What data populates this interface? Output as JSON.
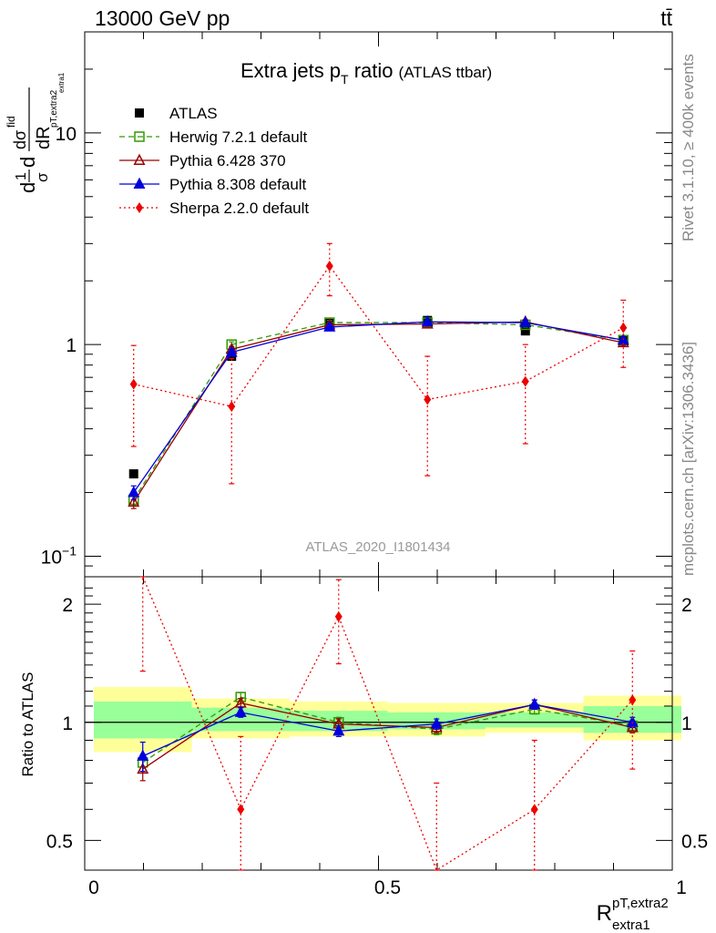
{
  "header": {
    "energy_label": "13000 GeV pp",
    "process_label": "tt̄"
  },
  "side_labels": {
    "rivet": "Rivet 3.1.10, ≥ 400k events",
    "mcplots": "mcplots.cern.ch [arXiv:1306.3436]"
  },
  "chart_data": [
    {
      "type": "line",
      "title": "Extra jets p_T ratio",
      "title_main": "Extra jets p",
      "title_sub": "T",
      "title_rest": " ratio",
      "title_note": "(ATLAS ttbar)",
      "analysis_label": "ATLAS_2020_I1801434",
      "ylabel_parts": [
        "d",
        "1",
        "σ",
        "d",
        "dσ",
        "fid",
        "dR",
        "pT,extra2",
        "extra1"
      ],
      "xlim": [
        0,
        1
      ],
      "ylim": [
        0.08,
        30
      ],
      "yscale": "log",
      "yticks": [
        {
          "v": 0.1,
          "base": "10",
          "exp": "−1"
        },
        {
          "v": 1,
          "base": "1",
          "exp": ""
        },
        {
          "v": 10,
          "base": "10",
          "exp": ""
        }
      ],
      "x": [
        0.0833,
        0.25,
        0.4167,
        0.5833,
        0.75,
        0.9167
      ],
      "legend_placement": "top-left",
      "series": [
        {
          "name": "ATLAS",
          "color": "#000000",
          "marker": "square-filled",
          "dash": "none",
          "values": [
            0.245,
            0.88,
            1.26,
            1.3,
            1.16,
            1.05
          ]
        },
        {
          "name": "Herwig 7.2.1 default",
          "color": "#339900",
          "marker": "square-open",
          "dash": "dashed",
          "values": [
            0.185,
            1.0,
            1.27,
            1.27,
            1.24,
            1.05
          ],
          "err": [
            0.01,
            0.03,
            0.03,
            0.03,
            0.03,
            0.03
          ]
        },
        {
          "name": "Pythia 6.428 370",
          "color": "#990000",
          "marker": "triangle-open",
          "dash": "solid",
          "values": [
            0.18,
            0.95,
            1.24,
            1.25,
            1.28,
            1.02
          ],
          "err": [
            0.012,
            0.03,
            0.03,
            0.03,
            0.03,
            0.03
          ]
        },
        {
          "name": "Pythia 8.308 default",
          "color": "#0000dd",
          "marker": "triangle-filled",
          "dash": "solid",
          "values": [
            0.2,
            0.92,
            1.21,
            1.28,
            1.27,
            1.05
          ],
          "err": [
            0.015,
            0.03,
            0.03,
            0.03,
            0.03,
            0.03
          ]
        },
        {
          "name": "Sherpa 2.2.0 default",
          "color": "#ee0000",
          "marker": "diamond-filled",
          "dash": "dotted",
          "values": [
            0.65,
            0.51,
            2.35,
            0.55,
            0.67,
            1.2
          ],
          "err_lo": [
            0.32,
            0.29,
            0.65,
            0.31,
            0.33,
            0.42
          ],
          "err_hi": [
            0.34,
            0.35,
            0.65,
            0.33,
            0.33,
            0.42
          ]
        }
      ]
    },
    {
      "type": "line",
      "ylabel": "Ratio to ATLAS",
      "xlabel": "R",
      "xlabel_sup": "pT,extra2",
      "xlabel_sub": "extra1",
      "xlim": [
        0,
        1
      ],
      "ylim": [
        0.42,
        2.35
      ],
      "yscale": "log",
      "yticks": [
        {
          "v": 0.5,
          "label": "0.5"
        },
        {
          "v": 1,
          "label": "1"
        },
        {
          "v": 2,
          "label": "2"
        }
      ],
      "xticks": [
        {
          "v": 0,
          "label": "0"
        },
        {
          "v": 0.5,
          "label": "0.5"
        },
        {
          "v": 1,
          "label": "1"
        }
      ],
      "x": [
        0.0833,
        0.25,
        0.4167,
        0.5833,
        0.75,
        0.9167
      ],
      "bands": {
        "bins": [
          [
            0,
            0.1667
          ],
          [
            0.1667,
            0.3333
          ],
          [
            0.3333,
            0.5
          ],
          [
            0.5,
            0.6667
          ],
          [
            0.6667,
            0.8333
          ],
          [
            0.8333,
            1
          ]
        ],
        "yellow": [
          [
            0.84,
            1.23
          ],
          [
            0.91,
            1.15
          ],
          [
            0.92,
            1.13
          ],
          [
            0.92,
            1.12
          ],
          [
            0.94,
            1.12
          ],
          [
            0.9,
            1.17
          ]
        ],
        "green": [
          [
            0.91,
            1.13
          ],
          [
            0.95,
            1.09
          ],
          [
            0.95,
            1.07
          ],
          [
            0.96,
            1.06
          ],
          [
            0.97,
            1.06
          ],
          [
            0.94,
            1.1
          ]
        ],
        "yellow_color": "#ffff99",
        "green_color": "#99ff99"
      },
      "series": [
        {
          "name": "Herwig 7.2.1 default",
          "color": "#339900",
          "marker": "square-open",
          "dash": "dashed",
          "values": [
            0.79,
            1.16,
            1.0,
            0.96,
            1.08,
            0.98
          ],
          "err": [
            0.04,
            0.03,
            0.03,
            0.03,
            0.03,
            0.03
          ]
        },
        {
          "name": "Pythia 6.428 370",
          "color": "#990000",
          "marker": "triangle-open",
          "dash": "solid",
          "values": [
            0.76,
            1.12,
            0.99,
            0.97,
            1.11,
            0.97
          ],
          "err": [
            0.05,
            0.03,
            0.03,
            0.03,
            0.03,
            0.03
          ]
        },
        {
          "name": "Pythia 8.308 default",
          "color": "#0000dd",
          "marker": "triangle-filled",
          "dash": "solid",
          "values": [
            0.82,
            1.06,
            0.95,
            0.99,
            1.11,
            1.0
          ],
          "err": [
            0.07,
            0.03,
            0.03,
            0.03,
            0.03,
            0.03
          ]
        },
        {
          "name": "Sherpa 2.2.0 default",
          "color": "#ee0000",
          "marker": "diamond-filled",
          "dash": "dotted",
          "values": [
            2.65,
            0.6,
            1.86,
            0.37,
            0.6,
            1.14
          ],
          "err_lo": [
            1.3,
            0.3,
            0.45,
            0.2,
            0.3,
            0.38
          ],
          "err_hi": [
            1.3,
            0.32,
            0.45,
            0.33,
            0.3,
            0.38
          ]
        }
      ]
    }
  ]
}
